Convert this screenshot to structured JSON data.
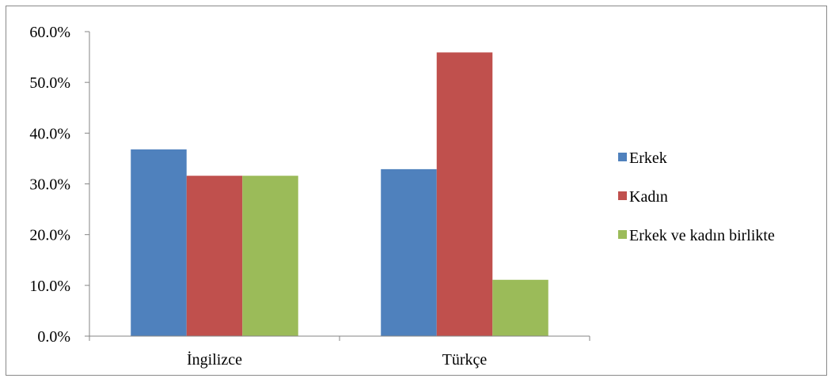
{
  "chart_data": {
    "type": "bar",
    "categories": [
      "İngilizce",
      "Türkçe"
    ],
    "series": [
      {
        "name": "Erkek",
        "values": [
          36.8,
          32.9
        ],
        "color": "#4F81BD"
      },
      {
        "name": "Kadın",
        "values": [
          31.6,
          55.9
        ],
        "color": "#C0504D"
      },
      {
        "name": "Erkek ve kadın birlikte",
        "values": [
          31.6,
          11.1
        ],
        "color": "#9BBB59"
      }
    ],
    "ylim": [
      0,
      60
    ],
    "yticks": [
      "0.0%",
      "10.0%",
      "20.0%",
      "30.0%",
      "40.0%",
      "50.0%",
      "60.0%"
    ],
    "legend_position": "right",
    "grid": false
  }
}
